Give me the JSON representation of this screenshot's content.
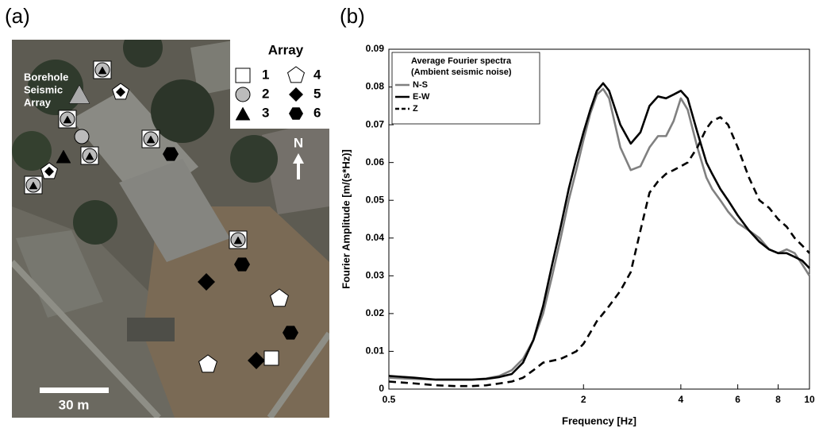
{
  "panel_labels": [
    "(a)",
    "(b)"
  ],
  "map": {
    "legend_title": "Array",
    "legend_items": [
      "1",
      "2",
      "3",
      "4",
      "5",
      "6"
    ],
    "site_label": [
      "Borehole",
      "Seismic",
      "Array"
    ],
    "north": "N",
    "scale": "30 m"
  },
  "chart_data": {
    "type": "line",
    "xlabel": "Frequency [Hz]",
    "ylabel": "Fourier Amplitude [m/(s*Hz)]",
    "legend_title": [
      "Average Fourier spectra",
      "(Ambient seismic noise)"
    ],
    "legend_position": "upper-left",
    "xscale": "log",
    "x": [
      0.5,
      0.6,
      0.7,
      0.8,
      0.9,
      1.0,
      1.1,
      1.2,
      1.3,
      1.4,
      1.5,
      1.6,
      1.7,
      1.8,
      1.9,
      2.0,
      2.1,
      2.2,
      2.3,
      2.4,
      2.6,
      2.8,
      3.0,
      3.2,
      3.4,
      3.6,
      3.8,
      4.0,
      4.2,
      4.5,
      4.8,
      5.0,
      5.3,
      5.6,
      6,
      6.5,
      7,
      7.5,
      8,
      8.5,
      9,
      9.5,
      10
    ],
    "series": [
      {
        "name": "N-S",
        "color": "#808080",
        "line_style": "solid",
        "values": [
          0.003,
          0.0027,
          0.0025,
          0.0025,
          0.0025,
          0.0028,
          0.0035,
          0.005,
          0.008,
          0.013,
          0.02,
          0.03,
          0.04,
          0.05,
          0.058,
          0.066,
          0.073,
          0.078,
          0.0795,
          0.077,
          0.064,
          0.058,
          0.059,
          0.064,
          0.067,
          0.067,
          0.071,
          0.077,
          0.074,
          0.064,
          0.056,
          0.053,
          0.05,
          0.047,
          0.044,
          0.042,
          0.04,
          0.037,
          0.036,
          0.037,
          0.036,
          0.033,
          0.03
        ]
      },
      {
        "name": "E-W",
        "color": "#000000",
        "line_style": "solid",
        "values": [
          0.0035,
          0.003,
          0.0025,
          0.0025,
          0.0025,
          0.0027,
          0.0032,
          0.004,
          0.007,
          0.013,
          0.022,
          0.033,
          0.043,
          0.053,
          0.061,
          0.068,
          0.074,
          0.079,
          0.081,
          0.079,
          0.07,
          0.065,
          0.068,
          0.075,
          0.0775,
          0.077,
          0.078,
          0.079,
          0.077,
          0.068,
          0.06,
          0.057,
          0.053,
          0.05,
          0.046,
          0.042,
          0.039,
          0.037,
          0.036,
          0.036,
          0.035,
          0.034,
          0.032
        ]
      },
      {
        "name": "Z",
        "color": "#000000",
        "line_style": "dashed",
        "values": [
          0.002,
          0.0015,
          0.001,
          0.0008,
          0.0008,
          0.001,
          0.0015,
          0.002,
          0.003,
          0.005,
          0.007,
          0.0075,
          0.008,
          0.009,
          0.01,
          0.012,
          0.015,
          0.018,
          0.02,
          0.022,
          0.026,
          0.031,
          0.042,
          0.052,
          0.055,
          0.057,
          0.058,
          0.059,
          0.06,
          0.064,
          0.069,
          0.071,
          0.072,
          0.07,
          0.064,
          0.056,
          0.05,
          0.048,
          0.045,
          0.043,
          0.04,
          0.038,
          0.036
        ]
      }
    ],
    "xlim": [
      0.5,
      10
    ],
    "xticks": [
      0.5,
      2,
      4,
      6,
      8,
      10
    ],
    "ylim": [
      0,
      0.09
    ],
    "yticks": [
      0,
      0.01,
      0.02,
      0.03,
      0.04,
      0.05,
      0.06,
      0.07,
      0.08,
      0.09
    ]
  }
}
